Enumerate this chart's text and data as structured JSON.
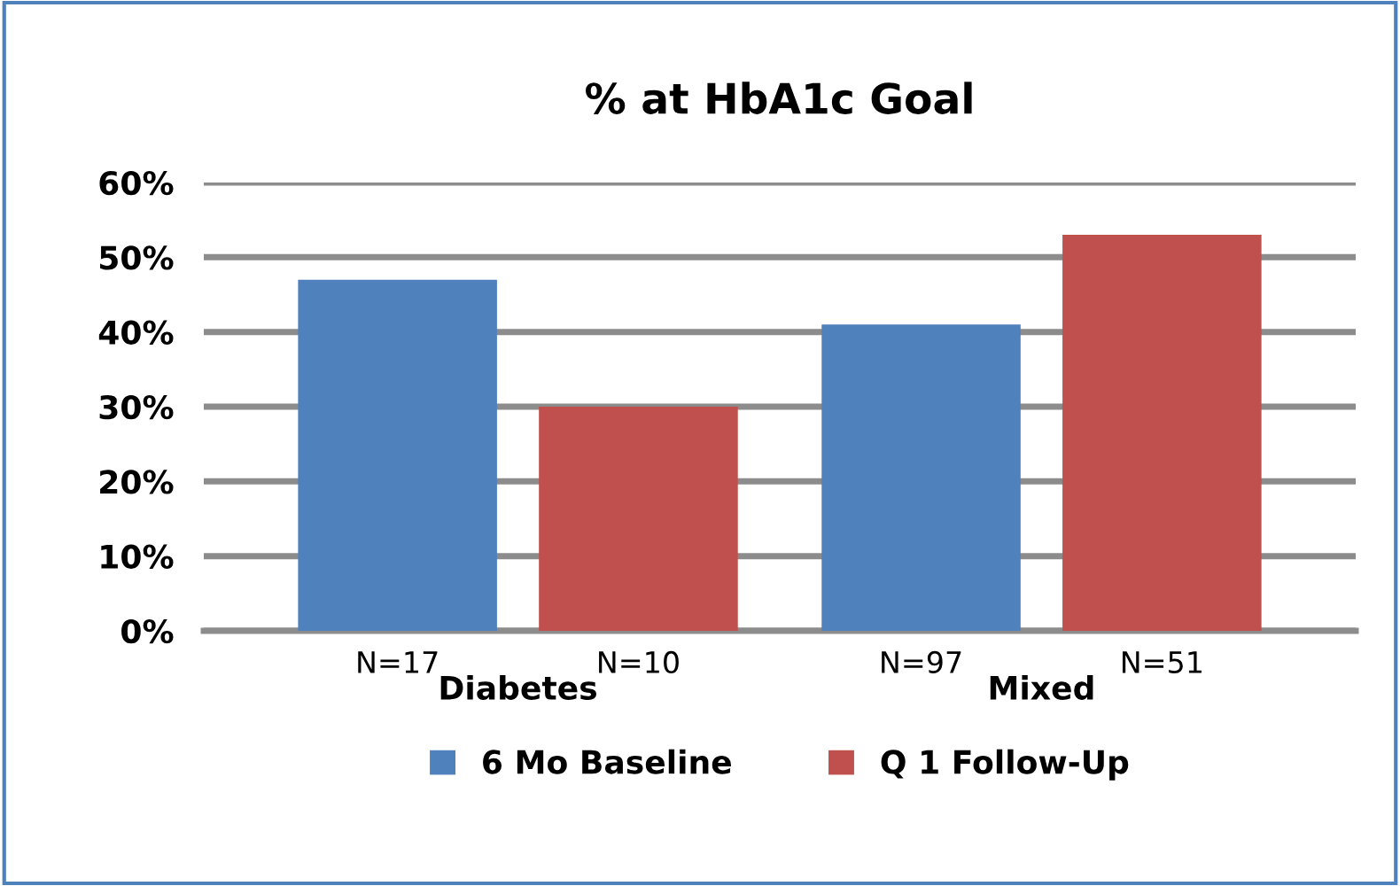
{
  "chart_data": {
    "type": "bar",
    "title": "% at HbA1c Goal",
    "categories": [
      "Diabetes",
      "Mixed"
    ],
    "series": [
      {
        "name": "6 Mo Baseline",
        "color": "#4f81bd",
        "values": [
          47,
          41
        ]
      },
      {
        "name": "Q 1 Follow-Up",
        "color": "#c0504d",
        "values": [
          30,
          53
        ]
      }
    ],
    "ylim": [
      0,
      60
    ],
    "yticks": [
      {
        "value": 0,
        "label": "0%"
      },
      {
        "value": 10,
        "label": "10%"
      },
      {
        "value": 20,
        "label": "20%"
      },
      {
        "value": 30,
        "label": "30%"
      },
      {
        "value": 40,
        "label": "40%"
      },
      {
        "value": 50,
        "label": "50%"
      },
      {
        "value": 60,
        "label": "60%"
      }
    ],
    "annotations": [
      "N=17",
      "N=10",
      "N=97",
      "N=51"
    ],
    "grid": "y",
    "legend": "bottom"
  }
}
